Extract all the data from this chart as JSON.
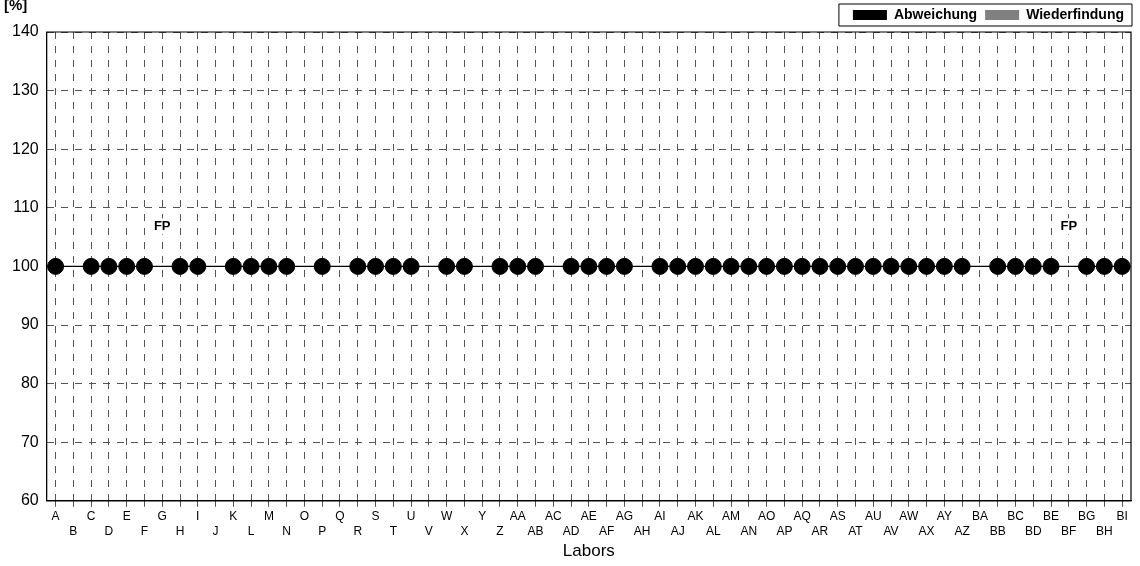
{
  "chart_data": {
    "type": "scatter",
    "xlabel": "Labors",
    "ylabel": "[%]",
    "categories": [
      "A",
      "B",
      "C",
      "D",
      "E",
      "F",
      "G",
      "H",
      "I",
      "J",
      "K",
      "L",
      "M",
      "N",
      "O",
      "P",
      "Q",
      "R",
      "S",
      "T",
      "U",
      "V",
      "W",
      "X",
      "Y",
      "Z",
      "AA",
      "AB",
      "AC",
      "AD",
      "AE",
      "AF",
      "AG",
      "AH",
      "AI",
      "AJ",
      "AK",
      "AL",
      "AM",
      "AN",
      "AO",
      "AP",
      "AQ",
      "AR",
      "AS",
      "AT",
      "AU",
      "AV",
      "AW",
      "AX",
      "AY",
      "AZ",
      "BA",
      "BB",
      "BC",
      "BD",
      "BE",
      "BF",
      "BG",
      "BH",
      "BI"
    ],
    "series": [
      {
        "name": "Abweichung",
        "color": "#000000",
        "values": [
          100,
          null,
          100,
          100,
          100,
          100,
          null,
          100,
          100,
          null,
          100,
          100,
          100,
          100,
          null,
          100,
          null,
          100,
          100,
          100,
          100,
          null,
          100,
          100,
          null,
          100,
          100,
          100,
          null,
          100,
          100,
          100,
          100,
          null,
          100,
          100,
          100,
          100,
          100,
          100,
          100,
          100,
          100,
          100,
          100,
          100,
          100,
          100,
          100,
          100,
          100,
          100,
          null,
          100,
          100,
          100,
          100,
          null,
          100,
          100,
          100
        ]
      },
      {
        "name": "Wiederfindung",
        "color": "#808080",
        "values": [
          null,
          null,
          null,
          null,
          null,
          null,
          null,
          null,
          null,
          null,
          null,
          null,
          null,
          null,
          null,
          null,
          null,
          null,
          null,
          null,
          null,
          null,
          null,
          null,
          null,
          null,
          null,
          null,
          null,
          null,
          null,
          null,
          null,
          null,
          null,
          null,
          null,
          null,
          null,
          null,
          null,
          null,
          null,
          null,
          null,
          null,
          null,
          null,
          null,
          null,
          null,
          null,
          null,
          null,
          null,
          null,
          null,
          null,
          null,
          null,
          null
        ]
      }
    ],
    "ylim": [
      60,
      140
    ],
    "yticks": [
      60,
      70,
      80,
      90,
      100,
      110,
      120,
      130,
      140
    ],
    "ref_lines": [
      {
        "axis": "y",
        "value": 100,
        "color": "#000000",
        "line_style": "solid"
      }
    ],
    "annotations": [
      {
        "text": "FP",
        "x": "G",
        "y": 100
      },
      {
        "text": "FP",
        "x": "BF",
        "y": 100
      }
    ],
    "grid": true,
    "legend": "top right",
    "marker": "circle"
  }
}
